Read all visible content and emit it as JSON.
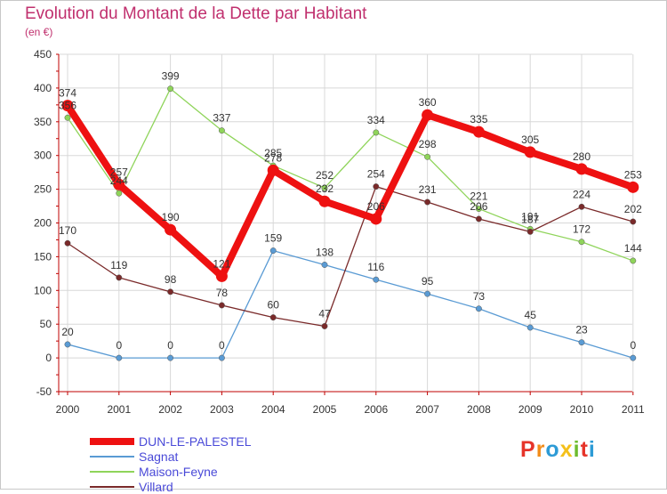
{
  "title": "Evolution du Montant de la Dette par Habitant",
  "unit_label": "(en €)",
  "logo_text": "Proxiti",
  "logo_colors": [
    "#e6342a",
    "#f28c1a",
    "#2d9bd6",
    "#f4c01a",
    "#6dbb2f",
    "#e6342a",
    "#2d9bd6"
  ],
  "colors": {
    "title": "#c0306e",
    "axis_text": "#333333",
    "grid": "#d8d8d8",
    "legend_text": "#4a4ad8"
  },
  "chart_data": {
    "type": "line",
    "title": "Evolution du Montant de la Dette par Habitant",
    "ylabel": "(en €)",
    "xlabel": "",
    "ylim": [
      -50,
      450
    ],
    "yticks": [
      -50,
      0,
      50,
      100,
      150,
      200,
      250,
      300,
      350,
      400,
      450
    ],
    "grid": true,
    "legend_position": "bottom-left",
    "x": [
      "2000",
      "2001",
      "2002",
      "2003",
      "2004",
      "2005",
      "2006",
      "2007",
      "2008",
      "2009",
      "2010",
      "2011"
    ],
    "series": [
      {
        "name": "DUN-LE-PALESTEL",
        "color": "#ee1111",
        "emphasis": true,
        "values": [
          374,
          257,
          190,
          121,
          278,
          232,
          206,
          360,
          335,
          305,
          280,
          253
        ],
        "labels": [
          "374",
          "257",
          "190",
          "121",
          "278",
          "232",
          "206",
          "360",
          "335",
          "305",
          "280",
          "253"
        ]
      },
      {
        "name": "Sagnat",
        "color": "#5a9bd4",
        "emphasis": false,
        "values": [
          20,
          0,
          0,
          0,
          159,
          138,
          116,
          95,
          73,
          45,
          23,
          0
        ],
        "labels": [
          "20",
          "0",
          "0",
          "0",
          "159",
          "138",
          "116",
          "95",
          "73",
          "45",
          "23",
          "0"
        ]
      },
      {
        "name": "Maison-Feyne",
        "color": "#8fd45a",
        "emphasis": false,
        "values": [
          356,
          244,
          399,
          337,
          285,
          252,
          334,
          298,
          221,
          191,
          172,
          144
        ],
        "labels": [
          "356",
          "244",
          "399",
          "337",
          "285",
          "252",
          "334",
          "298",
          "221",
          "191",
          "172",
          "144"
        ]
      },
      {
        "name": "Villard",
        "color": "#7a2a2a",
        "emphasis": false,
        "values": [
          170,
          119,
          98,
          78,
          60,
          47,
          254,
          231,
          206,
          187,
          224,
          202
        ],
        "labels": [
          "170",
          "119",
          "98",
          "78",
          "60",
          "47",
          "254",
          "231",
          "206",
          "187",
          "224",
          "202"
        ]
      }
    ]
  }
}
